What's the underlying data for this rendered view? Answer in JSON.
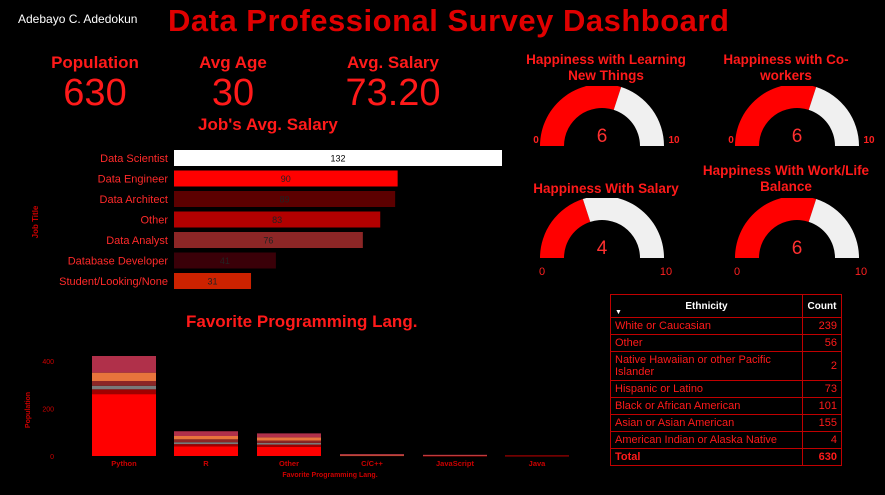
{
  "header": {
    "author": "Adebayo C. Adedokun",
    "title": "Data Professional Survey Dashboard"
  },
  "kpis": [
    {
      "label": "Population",
      "value": "630"
    },
    {
      "label": "Avg Age",
      "value": "30"
    },
    {
      "label": "Avg. Salary",
      "value": "73.20"
    }
  ],
  "colors": {
    "accent": "#ff0000",
    "gauge_fill": "#ff0000",
    "gauge_track": "#f0f0f0"
  },
  "gauges": [
    {
      "title": "Happiness with Learning New Things",
      "value": 6,
      "min": 0,
      "max": 10
    },
    {
      "title": "Happiness with Co-workers",
      "value": 6,
      "min": 0,
      "max": 10
    },
    {
      "title": "Happiness With Salary",
      "value": 4,
      "min": 0,
      "max": 10
    },
    {
      "title": "Happiness With Work/Life Balance",
      "value": 6,
      "min": 0,
      "max": 10
    }
  ],
  "ethnicity_table": {
    "headers": [
      "Ethnicity",
      "Count"
    ],
    "rows": [
      {
        "name": "White or Caucasian",
        "count": "239"
      },
      {
        "name": "Other",
        "count": "56"
      },
      {
        "name": "Native Hawaiian or other Pacific Islander",
        "count": "2"
      },
      {
        "name": "Hispanic or Latino",
        "count": "73"
      },
      {
        "name": "Black or African American",
        "count": "101"
      },
      {
        "name": "Asian or Asian American",
        "count": "155"
      },
      {
        "name": "American Indian or Alaska Native",
        "count": "4"
      }
    ],
    "total_label": "Total",
    "total_count": "630"
  },
  "chart_data": [
    {
      "type": "bar",
      "orientation": "horizontal",
      "title": "Job's Avg. Salary",
      "ylabel": "Job Title",
      "categories": [
        "Data Scientist",
        "Data Engineer",
        "Data Architect",
        "Other",
        "Data Analyst",
        "Database Developer",
        "Student/Looking/None"
      ],
      "values": [
        132,
        90,
        89,
        83,
        76,
        41,
        31
      ],
      "colors": [
        "#ffffff",
        "#ff0000",
        "#5c0000",
        "#b30000",
        "#8c2626",
        "#3a0008",
        "#cc2200"
      ],
      "xlim": [
        0,
        132
      ]
    },
    {
      "type": "bar",
      "stacked": true,
      "title": "Favorite Programming Lang.",
      "xlabel": "Favorite Programming Lang.",
      "ylabel": "Population",
      "categories": [
        "Python",
        "R",
        "Other",
        "C/C++",
        "JavaScript",
        "Java"
      ],
      "yticks": [
        0,
        200,
        400
      ],
      "ylim": [
        0,
        420
      ],
      "series": [
        {
          "values": [
            260,
            40,
            38,
            3,
            2,
            2
          ],
          "color": "#ff0000"
        },
        {
          "values": [
            20,
            10,
            10,
            1,
            1,
            1
          ],
          "color": "#a00000"
        },
        {
          "values": [
            15,
            8,
            7,
            1,
            0,
            0
          ],
          "color": "#7a7a7a"
        },
        {
          "values": [
            20,
            12,
            10,
            0,
            0,
            0
          ],
          "color": "#8c2626"
        },
        {
          "values": [
            35,
            14,
            13,
            1,
            1,
            0
          ],
          "color": "#e8743c"
        },
        {
          "values": [
            70,
            20,
            17,
            2,
            1,
            0
          ],
          "color": "#b0304a"
        }
      ]
    }
  ]
}
